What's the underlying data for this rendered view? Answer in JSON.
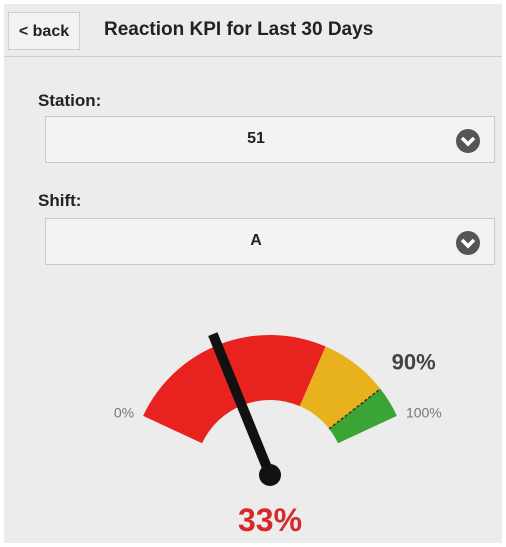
{
  "header": {
    "back": "< back",
    "title": "Reaction KPI for Last 30 Days"
  },
  "form": {
    "station_label": "Station:",
    "station_value": "51",
    "shift_label": "Shift:",
    "shift_value": "A"
  },
  "chart_data": {
    "type": "gauge",
    "value": 33,
    "value_label": "33%",
    "ticks": [
      {
        "value": 0,
        "label": "0%"
      },
      {
        "value": 100,
        "label": "100%"
      }
    ],
    "target": 90,
    "target_label": "90%",
    "bands": [
      {
        "from": 0,
        "color": "#e8231f"
      },
      {
        "from": 68,
        "color": "#e7b21c"
      },
      {
        "from": 90,
        "color": "#3aa534"
      }
    ],
    "needle_color": "#111111",
    "value_color": "#d8282a"
  }
}
